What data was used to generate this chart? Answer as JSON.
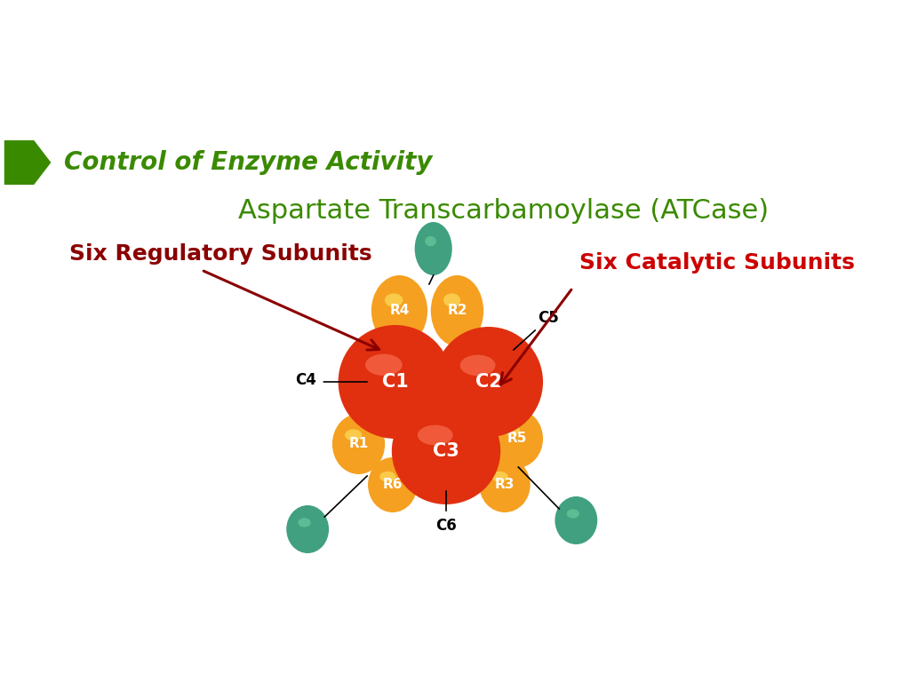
{
  "title": "Control of Enzyme Activity",
  "subtitle": "Aspartate Transcarbamoylase (ATCase)",
  "title_color": "#3a8a00",
  "subtitle_color": "#3a8a00",
  "label_regulatory": "Six Regulatory Subunits",
  "label_catalytic": "Six Catalytic Subunits",
  "label_color_regulatory": "#8B0000",
  "label_color_catalytic": "#cc0000",
  "bg_color": "#ffffff",
  "catalytic_color": "#e03010",
  "regulatory_color": "#f5a020",
  "tip_color": "#40a080",
  "tip_highlight": "#70d0a0",
  "arrow_color": "#8B0000",
  "line_color": "#000000",
  "label_font_size": 18,
  "title_font_size": 20,
  "subtitle_font_size": 22
}
